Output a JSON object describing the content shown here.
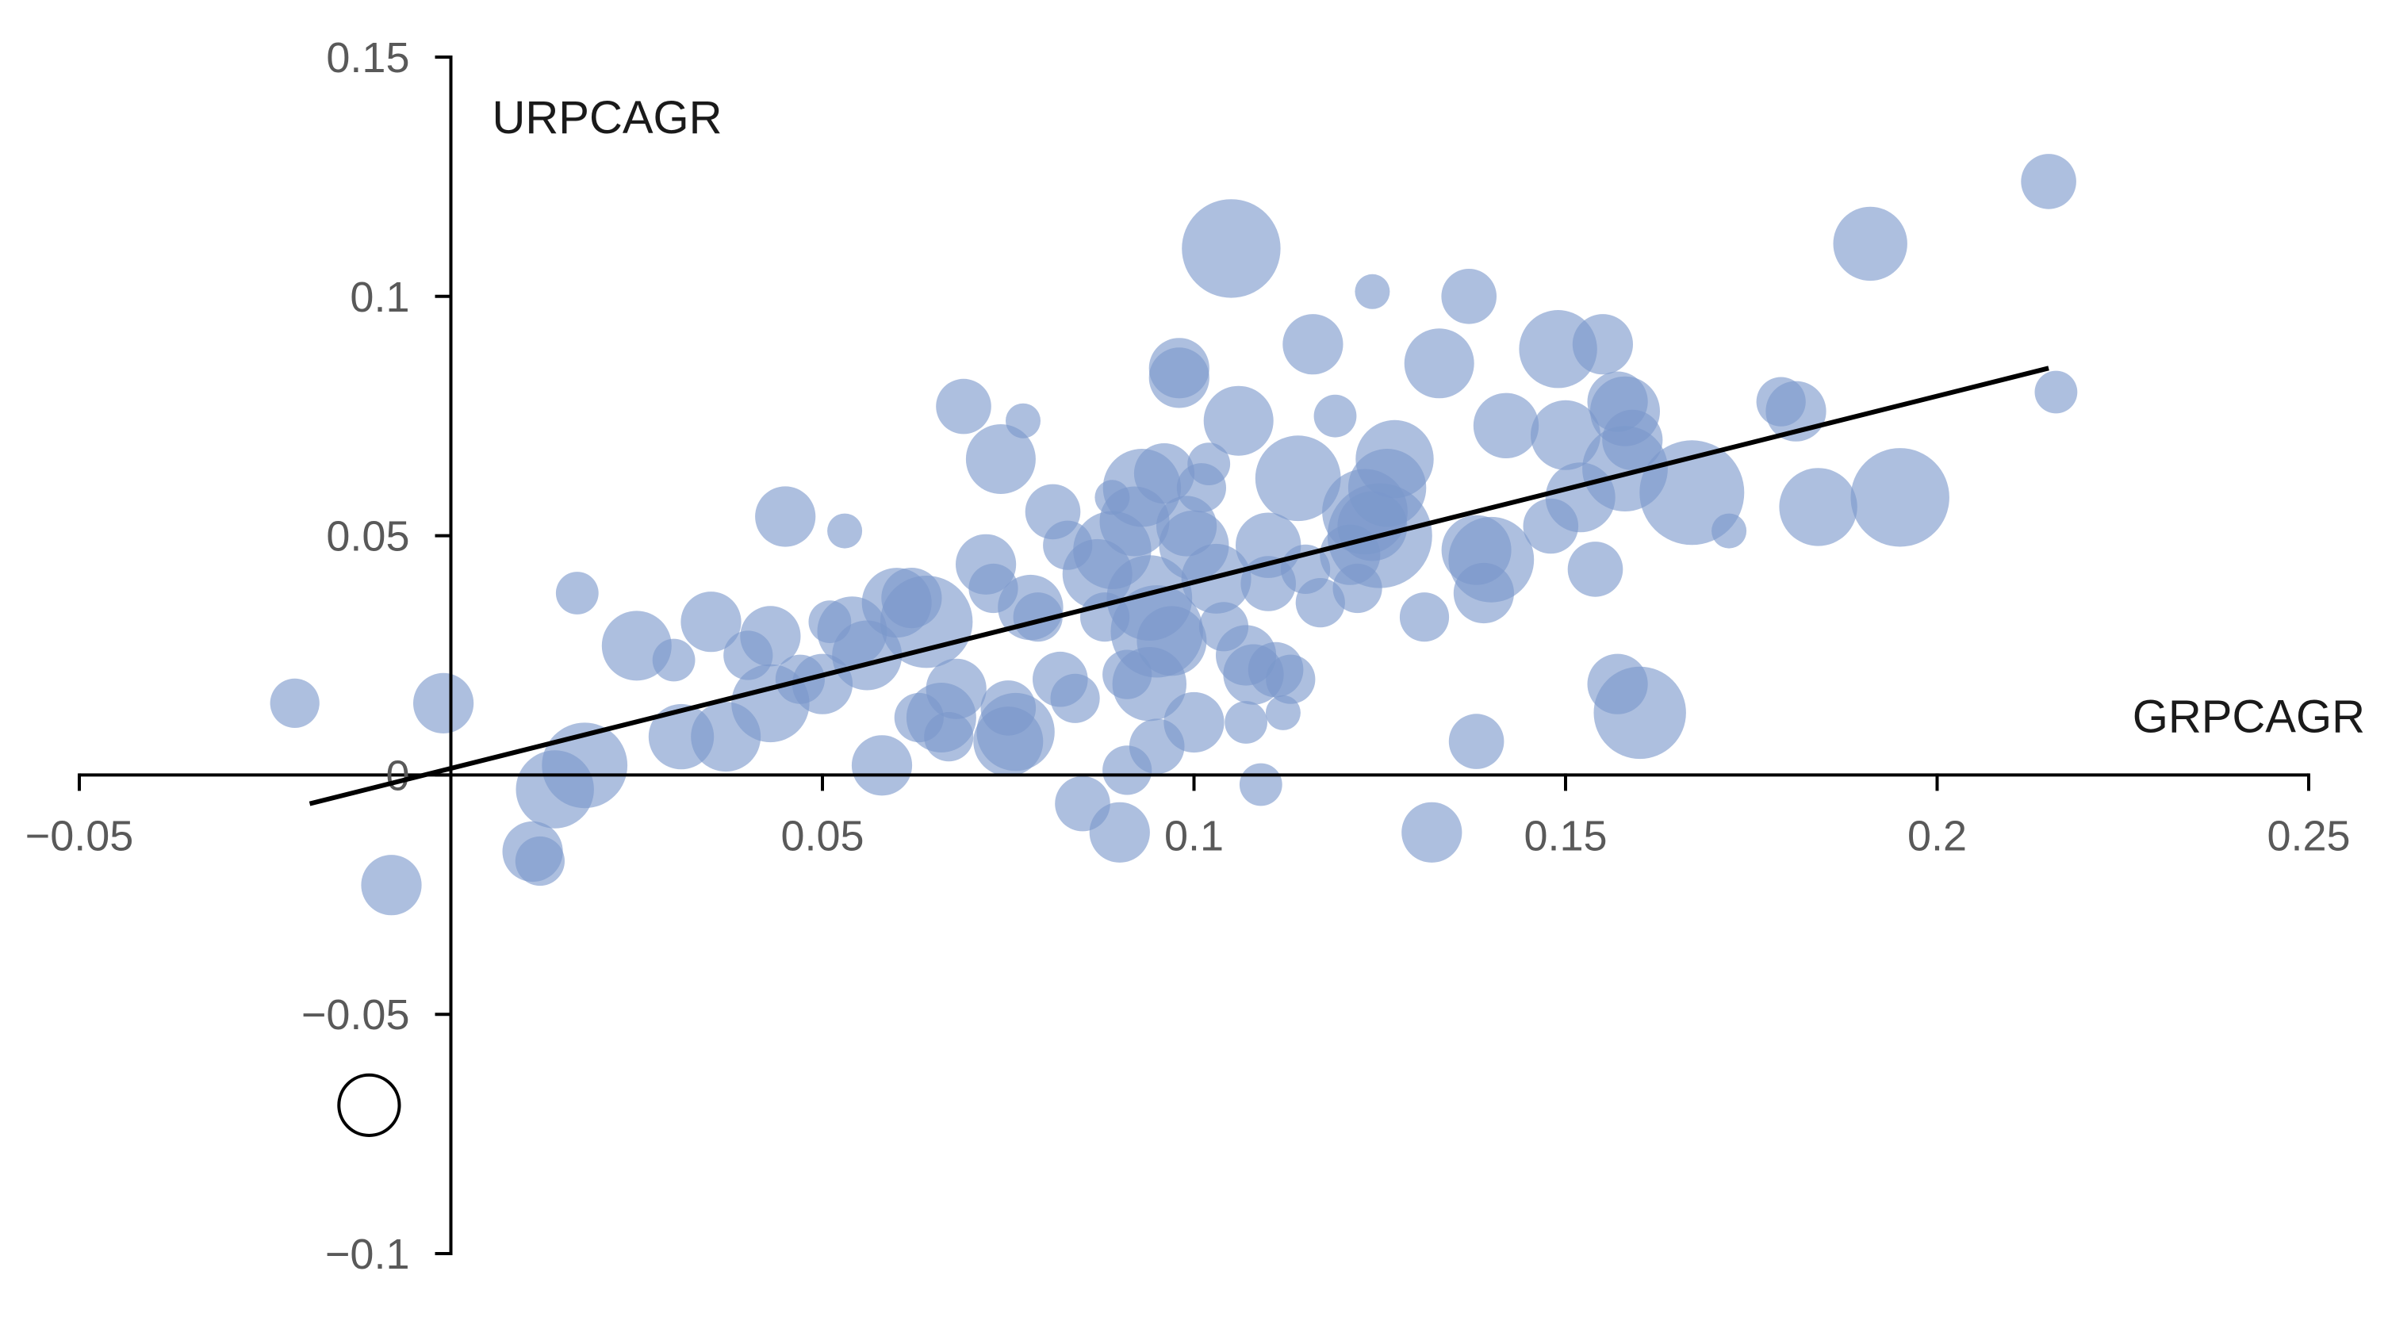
{
  "chart_data": {
    "type": "scatter",
    "title": "",
    "xlabel": "GRPCAGR",
    "ylabel": "URPCAGR",
    "xlim": [
      -0.05,
      0.25
    ],
    "ylim": [
      -0.1,
      0.15
    ],
    "x_ticks": [
      -0.05,
      0.05,
      0.1,
      0.15,
      0.2,
      0.25
    ],
    "x_tick_labels": [
      "−0.05",
      "0.05",
      "0.1",
      "0.15",
      "0.2",
      "0.25"
    ],
    "y_ticks": [
      0.15,
      0.1,
      0.05,
      0,
      -0.05,
      -0.1
    ],
    "y_tick_labels": [
      "0.15",
      "0.1",
      "0.05",
      "0",
      "−0.05",
      "−0.1"
    ],
    "grid": false,
    "legend": "none",
    "colors": {
      "bubble": "#7b98cb",
      "trendline": "#000000",
      "axis": "#000000",
      "outlier_stroke": "#000000"
    },
    "trendline": {
      "x": [
        -0.019,
        0.215
      ],
      "y": [
        -0.006,
        0.085
      ]
    },
    "points": [
      {
        "x": -0.021,
        "y": 0.015,
        "size": 2
      },
      {
        "x": -0.001,
        "y": 0.015,
        "size": 3
      },
      {
        "x": -0.008,
        "y": -0.023,
        "size": 3
      },
      {
        "x": 0.011,
        "y": -0.016,
        "size": 3
      },
      {
        "x": 0.012,
        "y": -0.018,
        "size": 2
      },
      {
        "x": 0.014,
        "y": -0.003,
        "size": 5
      },
      {
        "x": 0.018,
        "y": 0.002,
        "size": 6
      },
      {
        "x": 0.017,
        "y": 0.038,
        "size": 1.5
      },
      {
        "x": 0.025,
        "y": 0.027,
        "size": 4
      },
      {
        "x": 0.03,
        "y": 0.024,
        "size": 1.5
      },
      {
        "x": 0.031,
        "y": 0.008,
        "size": 3.5
      },
      {
        "x": 0.035,
        "y": 0.032,
        "size": 3
      },
      {
        "x": 0.037,
        "y": 0.008,
        "size": 4
      },
      {
        "x": 0.04,
        "y": 0.025,
        "size": 2
      },
      {
        "x": 0.043,
        "y": 0.029,
        "size": 3
      },
      {
        "x": 0.043,
        "y": 0.015,
        "size": 5
      },
      {
        "x": 0.045,
        "y": 0.054,
        "size": 3
      },
      {
        "x": 0.047,
        "y": 0.02,
        "size": 2
      },
      {
        "x": 0.05,
        "y": 0.019,
        "size": 3
      },
      {
        "x": 0.051,
        "y": 0.032,
        "size": 1.5
      },
      {
        "x": 0.053,
        "y": 0.051,
        "size": 1
      },
      {
        "x": 0.054,
        "y": 0.03,
        "size": 4
      },
      {
        "x": 0.056,
        "y": 0.025,
        "size": 4
      },
      {
        "x": 0.058,
        "y": 0.002,
        "size": 3
      },
      {
        "x": 0.06,
        "y": 0.036,
        "size": 4
      },
      {
        "x": 0.062,
        "y": 0.037,
        "size": 3
      },
      {
        "x": 0.063,
        "y": 0.012,
        "size": 2
      },
      {
        "x": 0.064,
        "y": 0.032,
        "size": 7
      },
      {
        "x": 0.066,
        "y": 0.012,
        "size": 4
      },
      {
        "x": 0.067,
        "y": 0.008,
        "size": 2
      },
      {
        "x": 0.068,
        "y": 0.018,
        "size": 3
      },
      {
        "x": 0.069,
        "y": 0.077,
        "size": 2.5
      },
      {
        "x": 0.072,
        "y": 0.044,
        "size": 3
      },
      {
        "x": 0.073,
        "y": 0.039,
        "size": 2
      },
      {
        "x": 0.074,
        "y": 0.066,
        "size": 4
      },
      {
        "x": 0.075,
        "y": 0.014,
        "size": 2.5
      },
      {
        "x": 0.075,
        "y": 0.007,
        "size": 4
      },
      {
        "x": 0.076,
        "y": 0.009,
        "size": 5
      },
      {
        "x": 0.077,
        "y": 0.074,
        "size": 1
      },
      {
        "x": 0.078,
        "y": 0.035,
        "size": 3.5
      },
      {
        "x": 0.079,
        "y": 0.033,
        "size": 2
      },
      {
        "x": 0.081,
        "y": 0.055,
        "size": 2.5
      },
      {
        "x": 0.082,
        "y": 0.02,
        "size": 2.5
      },
      {
        "x": 0.083,
        "y": 0.048,
        "size": 2
      },
      {
        "x": 0.084,
        "y": 0.016,
        "size": 2
      },
      {
        "x": 0.085,
        "y": -0.006,
        "size": 2.5
      },
      {
        "x": 0.087,
        "y": 0.042,
        "size": 4
      },
      {
        "x": 0.088,
        "y": 0.033,
        "size": 2
      },
      {
        "x": 0.089,
        "y": 0.058,
        "size": 1
      },
      {
        "x": 0.089,
        "y": 0.047,
        "size": 5
      },
      {
        "x": 0.09,
        "y": -0.012,
        "size": 3
      },
      {
        "x": 0.091,
        "y": 0.021,
        "size": 2
      },
      {
        "x": 0.091,
        "y": 0.001,
        "size": 2
      },
      {
        "x": 0.092,
        "y": 0.053,
        "size": 4
      },
      {
        "x": 0.093,
        "y": 0.06,
        "size": 5
      },
      {
        "x": 0.094,
        "y": 0.037,
        "size": 6
      },
      {
        "x": 0.094,
        "y": 0.019,
        "size": 4.5
      },
      {
        "x": 0.095,
        "y": 0.03,
        "size": 7
      },
      {
        "x": 0.095,
        "y": 0.006,
        "size": 2.5
      },
      {
        "x": 0.096,
        "y": 0.063,
        "size": 3
      },
      {
        "x": 0.097,
        "y": 0.028,
        "size": 4
      },
      {
        "x": 0.098,
        "y": 0.085,
        "size": 3
      },
      {
        "x": 0.098,
        "y": 0.083,
        "size": 3
      },
      {
        "x": 0.099,
        "y": 0.052,
        "size": 3
      },
      {
        "x": 0.1,
        "y": 0.048,
        "size": 4
      },
      {
        "x": 0.1,
        "y": 0.011,
        "size": 3
      },
      {
        "x": 0.101,
        "y": 0.06,
        "size": 2
      },
      {
        "x": 0.102,
        "y": 0.065,
        "size": 1.5
      },
      {
        "x": 0.103,
        "y": 0.041,
        "size": 4
      },
      {
        "x": 0.104,
        "y": 0.031,
        "size": 2
      },
      {
        "x": 0.105,
        "y": 0.11,
        "size": 8
      },
      {
        "x": 0.106,
        "y": 0.074,
        "size": 4
      },
      {
        "x": 0.107,
        "y": 0.025,
        "size": 3
      },
      {
        "x": 0.107,
        "y": 0.011,
        "size": 1.5
      },
      {
        "x": 0.108,
        "y": 0.021,
        "size": 3
      },
      {
        "x": 0.109,
        "y": -0.002,
        "size": 1.5
      },
      {
        "x": 0.11,
        "y": 0.04,
        "size": 2.5
      },
      {
        "x": 0.11,
        "y": 0.048,
        "size": 3.5
      },
      {
        "x": 0.111,
        "y": 0.022,
        "size": 2.5
      },
      {
        "x": 0.112,
        "y": 0.013,
        "size": 1
      },
      {
        "x": 0.113,
        "y": 0.02,
        "size": 2
      },
      {
        "x": 0.114,
        "y": 0.062,
        "size": 6
      },
      {
        "x": 0.115,
        "y": 0.043,
        "size": 2
      },
      {
        "x": 0.116,
        "y": 0.09,
        "size": 3
      },
      {
        "x": 0.117,
        "y": 0.036,
        "size": 2
      },
      {
        "x": 0.119,
        "y": 0.075,
        "size": 1.5
      },
      {
        "x": 0.121,
        "y": 0.046,
        "size": 3
      },
      {
        "x": 0.122,
        "y": 0.039,
        "size": 2
      },
      {
        "x": 0.123,
        "y": 0.055,
        "size": 6
      },
      {
        "x": 0.124,
        "y": 0.101,
        "size": 1
      },
      {
        "x": 0.124,
        "y": 0.052,
        "size": 4
      },
      {
        "x": 0.125,
        "y": 0.05,
        "size": 9
      },
      {
        "x": 0.126,
        "y": 0.06,
        "size": 5
      },
      {
        "x": 0.127,
        "y": 0.066,
        "size": 5
      },
      {
        "x": 0.131,
        "y": 0.033,
        "size": 2
      },
      {
        "x": 0.132,
        "y": -0.012,
        "size": 3
      },
      {
        "x": 0.133,
        "y": 0.086,
        "size": 4
      },
      {
        "x": 0.137,
        "y": 0.1,
        "size": 2.5
      },
      {
        "x": 0.138,
        "y": 0.007,
        "size": 2.5
      },
      {
        "x": 0.138,
        "y": 0.047,
        "size": 4
      },
      {
        "x": 0.139,
        "y": 0.038,
        "size": 3
      },
      {
        "x": 0.14,
        "y": 0.045,
        "size": 6
      },
      {
        "x": 0.142,
        "y": 0.073,
        "size": 3.5
      },
      {
        "x": 0.148,
        "y": 0.052,
        "size": 2.5
      },
      {
        "x": 0.149,
        "y": 0.089,
        "size": 5
      },
      {
        "x": 0.15,
        "y": 0.071,
        "size": 4
      },
      {
        "x": 0.152,
        "y": 0.058,
        "size": 4
      },
      {
        "x": 0.154,
        "y": 0.043,
        "size": 2.5
      },
      {
        "x": 0.155,
        "y": 0.09,
        "size": 3
      },
      {
        "x": 0.157,
        "y": 0.019,
        "size": 3
      },
      {
        "x": 0.157,
        "y": 0.078,
        "size": 3
      },
      {
        "x": 0.158,
        "y": 0.076,
        "size": 4
      },
      {
        "x": 0.158,
        "y": 0.064,
        "size": 6
      },
      {
        "x": 0.159,
        "y": 0.07,
        "size": 3
      },
      {
        "x": 0.16,
        "y": 0.013,
        "size": 7
      },
      {
        "x": 0.167,
        "y": 0.059,
        "size": 9
      },
      {
        "x": 0.172,
        "y": 0.051,
        "size": 1
      },
      {
        "x": 0.179,
        "y": 0.078,
        "size": 2
      },
      {
        "x": 0.181,
        "y": 0.076,
        "size": 3
      },
      {
        "x": 0.184,
        "y": 0.056,
        "size": 5
      },
      {
        "x": 0.191,
        "y": 0.111,
        "size": 4.5
      },
      {
        "x": 0.195,
        "y": 0.058,
        "size": 8
      },
      {
        "x": 0.215,
        "y": 0.124,
        "size": 2.5
      },
      {
        "x": 0.216,
        "y": 0.08,
        "size": 1.5
      }
    ],
    "outlier": {
      "x": -0.011,
      "y": -0.069,
      "size": 3
    }
  }
}
